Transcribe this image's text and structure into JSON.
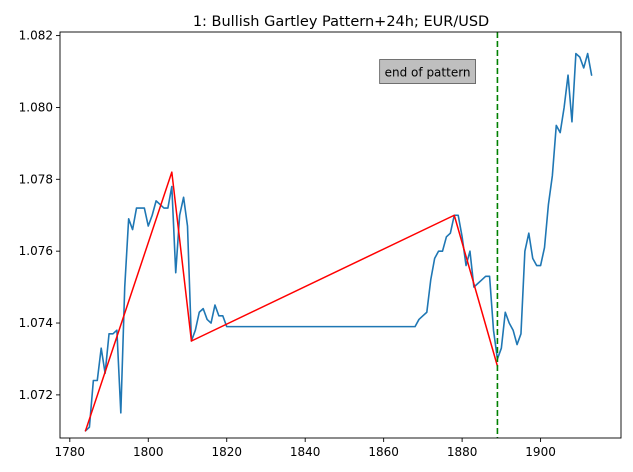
{
  "chart_data": {
    "type": "line",
    "title": "1: Bullish Gartley Pattern+24h; EUR/USD",
    "xlabel": "",
    "ylabel": "",
    "xlim": [
      1777.5,
      1920.5
    ],
    "ylim": [
      1.0708,
      1.0821
    ],
    "x_ticks": [
      1780,
      1800,
      1820,
      1840,
      1860,
      1880,
      1900
    ],
    "y_ticks": [
      1.072,
      1.074,
      1.076,
      1.078,
      1.08,
      1.082
    ],
    "y_tick_labels": [
      "1.072",
      "1.074",
      "1.076",
      "1.078",
      "1.080",
      "1.082"
    ],
    "grid": false,
    "series": [
      {
        "role": "price",
        "color": "#1f77b4",
        "x": [
          1784,
          1785,
          1786,
          1787,
          1788,
          1789,
          1790,
          1791,
          1792,
          1793,
          1794,
          1795,
          1796,
          1797,
          1798,
          1799,
          1800,
          1801,
          1802,
          1803,
          1804,
          1805,
          1806,
          1807,
          1808,
          1809,
          1810,
          1811,
          1812,
          1813,
          1814,
          1815,
          1816,
          1817,
          1818,
          1819,
          1820,
          1868,
          1869,
          1870,
          1871,
          1872,
          1873,
          1874,
          1875,
          1876,
          1877,
          1878,
          1879,
          1880,
          1881,
          1882,
          1883,
          1884,
          1885,
          1886,
          1887,
          1888,
          1889,
          1890,
          1891,
          1892,
          1893,
          1894,
          1895,
          1896,
          1897,
          1898,
          1899,
          1900,
          1901,
          1902,
          1903,
          1904,
          1905,
          1906,
          1907,
          1908,
          1909,
          1910,
          1911,
          1912,
          1913
        ],
        "y": [
          1.071,
          1.0711,
          1.0724,
          1.0724,
          1.0733,
          1.0726,
          1.0737,
          1.0737,
          1.0738,
          1.0715,
          1.075,
          1.0769,
          1.0766,
          1.0772,
          1.0772,
          1.0772,
          1.0767,
          1.077,
          1.0774,
          1.0773,
          1.0772,
          1.0772,
          1.0778,
          1.0754,
          1.077,
          1.0775,
          1.0767,
          1.0735,
          1.0738,
          1.0743,
          1.0744,
          1.0741,
          1.074,
          1.0745,
          1.0742,
          1.0742,
          1.0739,
          1.0739,
          1.0741,
          1.0742,
          1.0743,
          1.0752,
          1.0758,
          1.076,
          1.076,
          1.0764,
          1.0765,
          1.077,
          1.077,
          1.0764,
          1.0756,
          1.076,
          1.075,
          1.0751,
          1.0752,
          1.0753,
          1.0753,
          1.0738,
          1.073,
          1.0733,
          1.0743,
          1.074,
          1.0738,
          1.0734,
          1.0737,
          1.076,
          1.0765,
          1.0758,
          1.0756,
          1.0756,
          1.0761,
          1.0773,
          1.0781,
          1.0795,
          1.0793,
          1.08,
          1.0809,
          1.0796,
          1.0815,
          1.0814,
          1.0811,
          1.0815,
          1.0809
        ]
      },
      {
        "role": "pattern",
        "color": "#ff0000",
        "x": [
          1784,
          1806,
          1811,
          1878,
          1889
        ],
        "y": [
          1.071,
          1.0782,
          1.0735,
          1.077,
          1.0728
        ]
      }
    ],
    "vline": {
      "x": 1889,
      "color": "#008000",
      "style": "dashed"
    },
    "annotation": {
      "text": "end of pattern",
      "x": 1860,
      "y": 1.081,
      "box_color": "#bfbfbf"
    }
  }
}
